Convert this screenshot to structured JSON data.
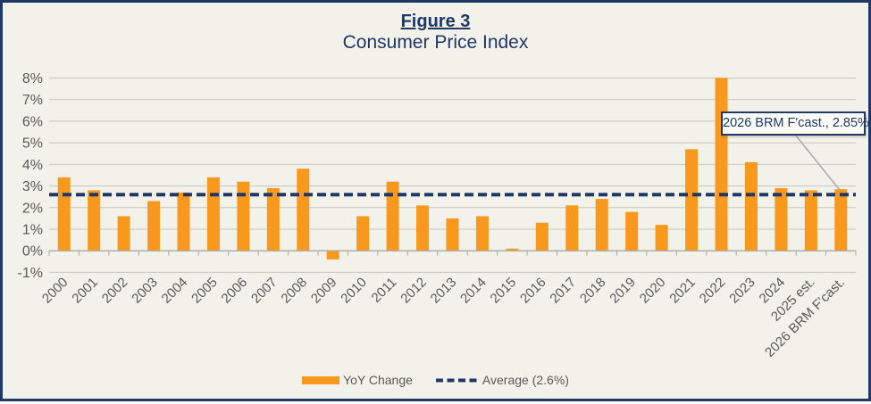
{
  "figure": {
    "title": "Figure 3",
    "subtitle": "Consumer Price Index"
  },
  "chart_data": {
    "type": "bar",
    "title": "Figure 3",
    "subtitle": "Consumer Price Index",
    "categories": [
      "2000",
      "2001",
      "2002",
      "2003",
      "2004",
      "2005",
      "2006",
      "2007",
      "2008",
      "2009",
      "2010",
      "2011",
      "2012",
      "2013",
      "2014",
      "2015",
      "2016",
      "2017",
      "2018",
      "2019",
      "2020",
      "2021",
      "2022",
      "2023",
      "2024",
      "2025 est.",
      "2026 BRM F'cast."
    ],
    "series": [
      {
        "name": "YoY Change",
        "values": [
          3.4,
          2.8,
          1.6,
          2.3,
          2.7,
          3.4,
          3.2,
          2.9,
          3.8,
          -0.4,
          1.6,
          3.2,
          2.1,
          1.5,
          1.6,
          0.1,
          1.3,
          2.1,
          2.4,
          1.8,
          1.2,
          4.7,
          8.0,
          4.1,
          2.9,
          2.8,
          2.85
        ]
      }
    ],
    "average_line": {
      "value": 2.6,
      "label": "Average (2.6%)"
    },
    "annotation": {
      "text": "2026 BRM F'cast., 2.85%",
      "target_category": "2026 BRM F'cast.",
      "target_value": 2.85
    },
    "ylim": [
      -1,
      8
    ],
    "yticks": [
      8,
      7,
      6,
      5,
      4,
      3,
      2,
      1,
      0,
      -1
    ],
    "ytick_suffix": "%",
    "grid": "horizontal",
    "legend_position": "bottom",
    "colors": {
      "bar": "#F8981D",
      "average_line": "#1F3864",
      "grid": "#C7C6BE",
      "axis": "#ABAAA2",
      "tick_label": "#595959",
      "title": "#1F3864",
      "frame_border": "#1F3864",
      "background": "#F2F1EA",
      "callout_border": "#1F3864",
      "callout_text": "#1F3864",
      "leader": "#A6A6A6"
    }
  },
  "legend": {
    "items": [
      {
        "label": "YoY Change"
      },
      {
        "label": "Average (2.6%)"
      }
    ]
  },
  "callout": {
    "label": "2026 BRM F'cast., 2.85%"
  }
}
